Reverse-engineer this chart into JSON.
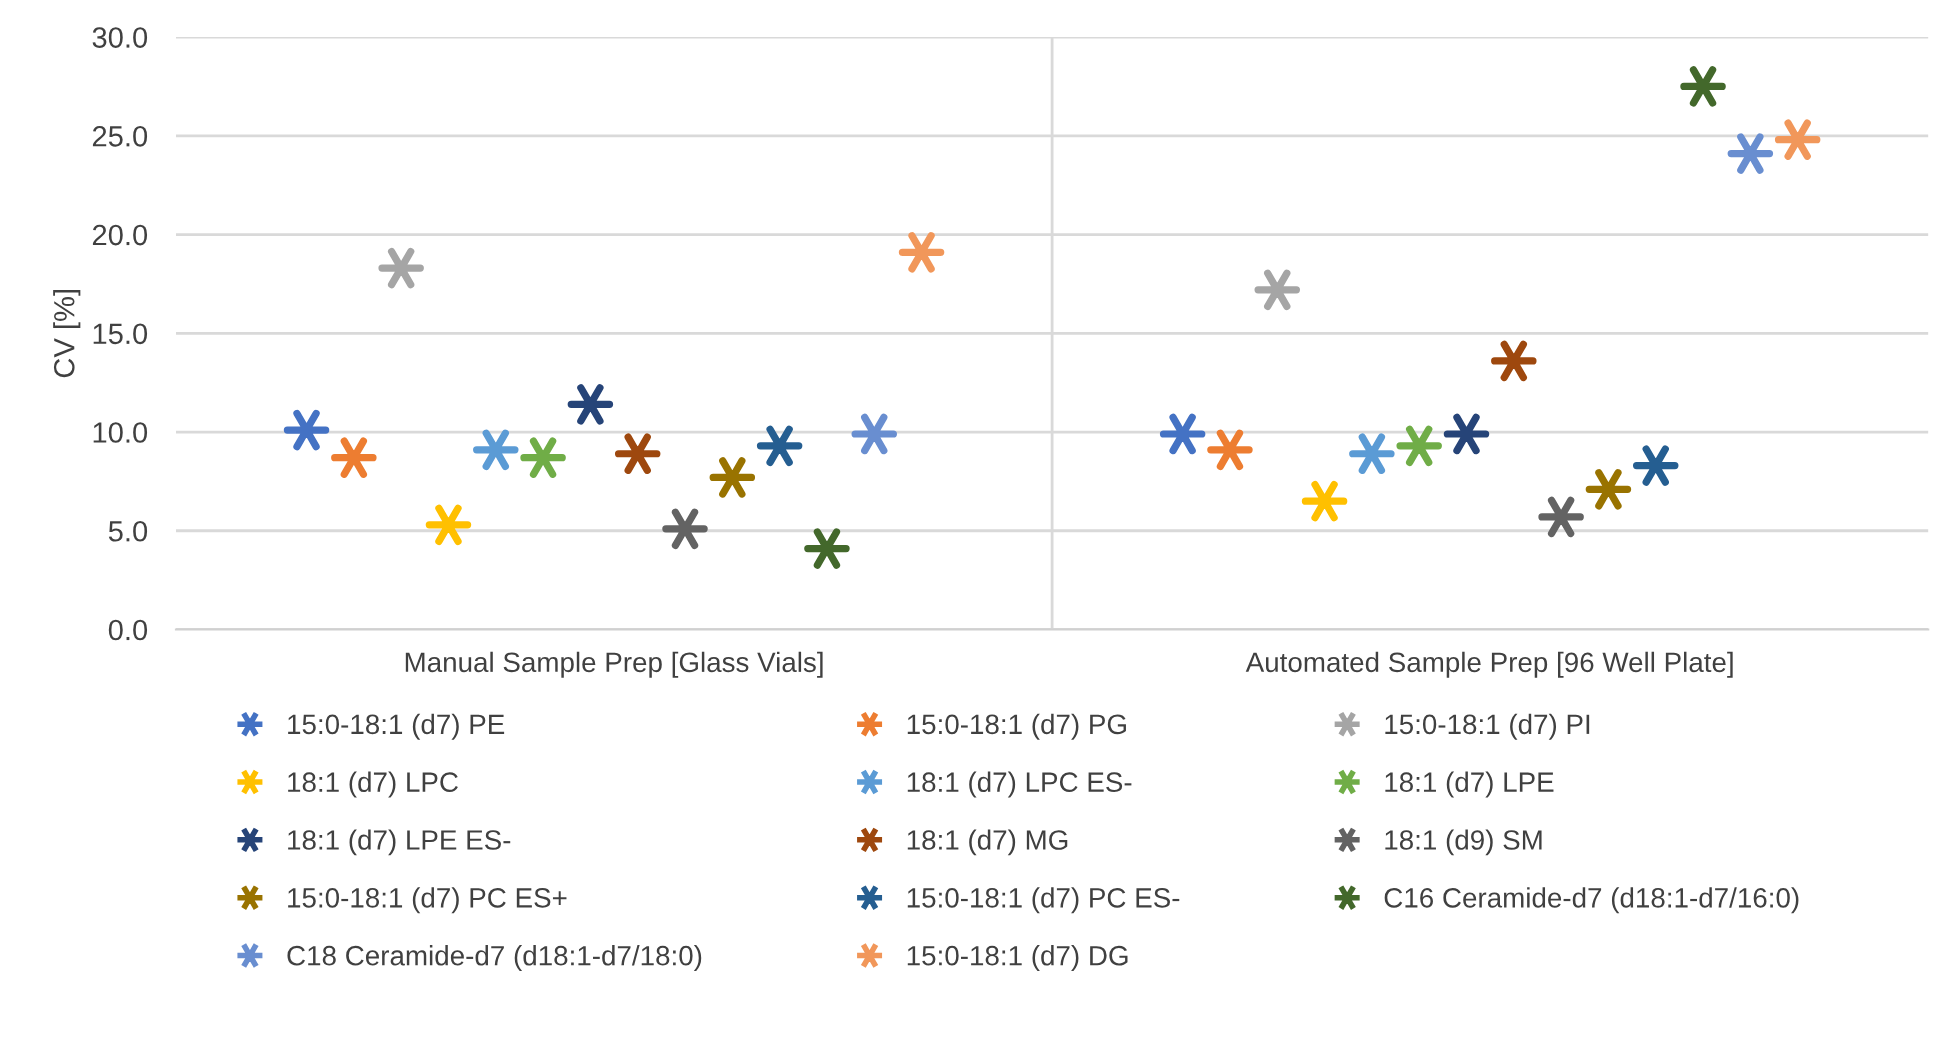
{
  "chart_data": {
    "type": "scatter",
    "ylabel": "CV [%]",
    "categories": [
      "Manual Sample Prep [Glass Vials]",
      "Automated Sample Prep [96 Well Plate]"
    ],
    "ylim": [
      0,
      30
    ],
    "yticks": [
      {
        "value": 0,
        "label": "0.0"
      },
      {
        "value": 5,
        "label": "5.0"
      },
      {
        "value": 10,
        "label": "10.0"
      },
      {
        "value": 15,
        "label": "15.0"
      },
      {
        "value": 20,
        "label": "20.0"
      },
      {
        "value": 25,
        "label": "25.0"
      },
      {
        "value": 30,
        "label": "30.0"
      }
    ],
    "grid": "y",
    "legend": "bottom",
    "marker": "cross",
    "series": [
      {
        "name": "15:0-18:1 (d7) PE",
        "color": "#4472c4",
        "values": [
          10.1,
          9.9
        ]
      },
      {
        "name": "15:0-18:1 (d7) PG",
        "color": "#ed7d31",
        "values": [
          8.7,
          9.1
        ]
      },
      {
        "name": "15:0-18:1 (d7) PI",
        "color": "#a5a5a5",
        "values": [
          18.3,
          17.2
        ]
      },
      {
        "name": "18:1 (d7) LPC",
        "color": "#ffc000",
        "values": [
          5.3,
          6.5
        ]
      },
      {
        "name": "18:1 (d7) LPC ES-",
        "color": "#5b9bd5",
        "values": [
          9.1,
          8.9
        ]
      },
      {
        "name": "18:1 (d7) LPE",
        "color": "#70ad47",
        "values": [
          8.7,
          9.3
        ]
      },
      {
        "name": "18:1 (d7) LPE ES-",
        "color": "#264478",
        "values": [
          11.4,
          9.9
        ]
      },
      {
        "name": "18:1 (d7) MG",
        "color": "#9e480e",
        "values": [
          8.9,
          13.6
        ]
      },
      {
        "name": "18:1 (d9) SM",
        "color": "#636363",
        "values": [
          5.1,
          5.7
        ]
      },
      {
        "name": "15:0-18:1 (d7) PC ES+",
        "color": "#997300",
        "values": [
          7.7,
          7.1
        ]
      },
      {
        "name": "15:0-18:1 (d7) PC ES-",
        "color": "#255e91",
        "values": [
          9.3,
          8.3
        ]
      },
      {
        "name": "C16 Ceramide-d7 (d18:1-d7/16:0)",
        "color": "#43682b",
        "values": [
          4.1,
          27.5
        ]
      },
      {
        "name": "C18 Ceramide-d7 (d18:1-d7/18:0)",
        "color": "#698ed0",
        "values": [
          9.9,
          24.1
        ]
      },
      {
        "name": "15:0-18:1 (d7) DG",
        "color": "#f1975a",
        "values": [
          19.1,
          24.8
        ]
      }
    ]
  }
}
